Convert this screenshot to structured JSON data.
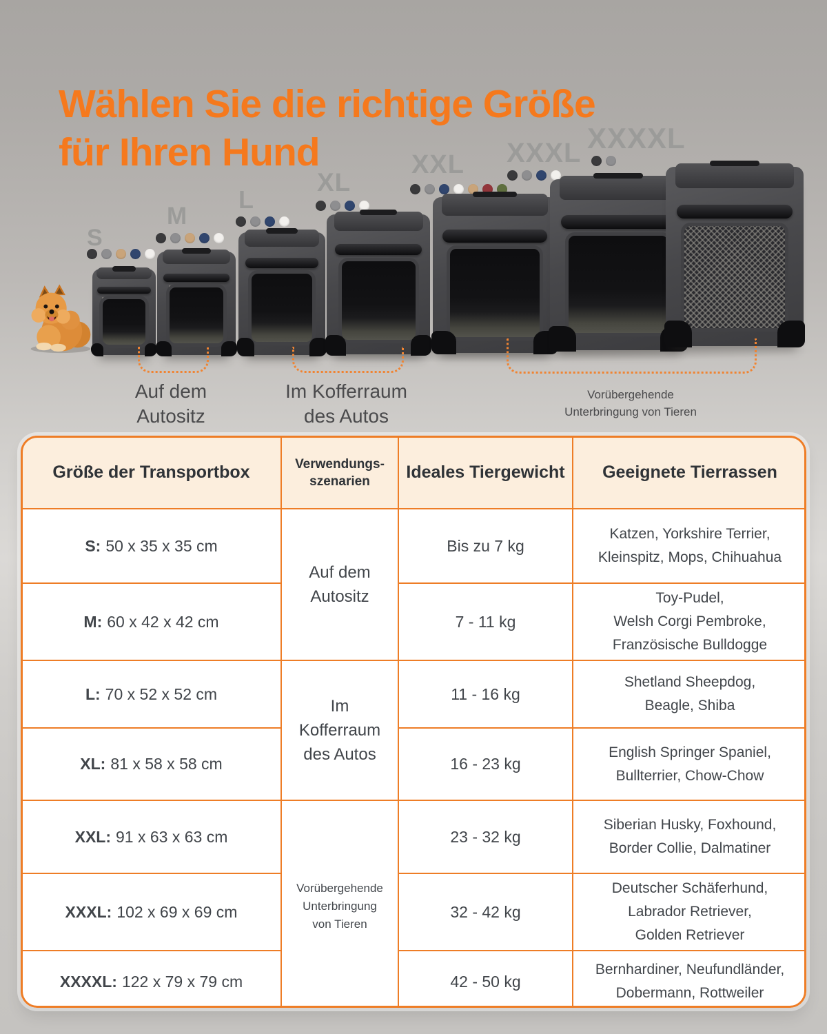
{
  "title": {
    "line1": "Wählen Sie die richtige Größe",
    "line2": "für Ihren Hund",
    "color": "#f5791d"
  },
  "accent_orange": "#ee7d26",
  "header_bg": "#fceedd",
  "hero": {
    "sizes": [
      {
        "label": "S",
        "dots": [
          "#3a3a3c",
          "#8e8e90",
          "#c9a47a",
          "#31466e",
          "#f2f0ed"
        ]
      },
      {
        "label": "M",
        "dots": [
          "#3a3a3c",
          "#8e8e90",
          "#c9a47a",
          "#31466e",
          "#f2f0ed"
        ]
      },
      {
        "label": "L",
        "dots": [
          "#3a3a3c",
          "#8e8e90",
          "#31466e",
          "#f2f0ed"
        ]
      },
      {
        "label": "XL",
        "dots": [
          "#3a3a3c",
          "#8e8e90",
          "#31466e",
          "#f2f0ed"
        ]
      },
      {
        "label": "XXL",
        "dots": [
          "#3a3a3c",
          "#8e8e90",
          "#31466e",
          "#f2f0ed",
          "#c9a47a",
          "#93353a",
          "#5f6f3e"
        ]
      },
      {
        "label": "XXXL",
        "dots": [
          "#3a3a3c",
          "#8e8e90",
          "#31466e",
          "#f2f0ed"
        ]
      },
      {
        "label": "XXXXL",
        "dots": [
          "#3a3a3c",
          "#8e8e90"
        ]
      }
    ],
    "annotations": [
      {
        "line1": "Auf dem",
        "line2": "Autositz"
      },
      {
        "line1": "Im Kofferraum",
        "line2": "des Autos"
      },
      {
        "line1": "Vorübergehende",
        "line2": "Unterbringung von Tieren"
      }
    ]
  },
  "table": {
    "headers": {
      "col1": "Größe der Transportbox",
      "col2a": "Verwendungs-",
      "col2b": "szenarien",
      "col3": "Ideales Tiergewicht",
      "col4": "Geeignete Tierrassen"
    },
    "scenarios": [
      {
        "line1": "Auf dem",
        "line2": "Autositz"
      },
      {
        "line1": "Im Kofferraum",
        "line2": "des Autos"
      },
      {
        "line1": "Vorübergehende",
        "line2": "Unterbringung",
        "line3": "von Tieren"
      }
    ],
    "rows": [
      {
        "size": "S:",
        "dims": "50 x 35 x 35 cm",
        "weight": "Bis zu 7 kg",
        "breeds1": "Katzen, Yorkshire Terrier,",
        "breeds2": "Kleinspitz, Mops, Chihuahua"
      },
      {
        "size": "M:",
        "dims": "60 x 42 x 42 cm",
        "weight": "7 - 11 kg",
        "breeds1": "Toy-Pudel,",
        "breeds2": "Welsh Corgi Pembroke,",
        "breeds3": "Französische Bulldogge"
      },
      {
        "size": "L:",
        "dims": "70 x 52 x 52 cm",
        "weight": "11 - 16 kg",
        "breeds1": "Shetland Sheepdog,",
        "breeds2": "Beagle, Shiba"
      },
      {
        "size": "XL:",
        "dims": "81 x 58 x 58 cm",
        "weight": "16 - 23 kg",
        "breeds1": "English Springer Spaniel,",
        "breeds2": "Bullterrier, Chow-Chow"
      },
      {
        "size": "XXL:",
        "dims": "91 x 63 x 63 cm",
        "weight": "23 - 32 kg",
        "breeds1": "Siberian Husky, Foxhound,",
        "breeds2": "Border Collie, Dalmatiner"
      },
      {
        "size": "XXXL:",
        "dims": "102 x 69 x 69 cm",
        "weight": "32 - 42 kg",
        "breeds1": "Deutscher Schäferhund,",
        "breeds2": "Labrador Retriever,",
        "breeds3": "Golden Retriever"
      },
      {
        "size": "XXXXL:",
        "dims": "122 x 79 x 79 cm",
        "weight": "42 - 50 kg",
        "breeds1": "Bernhardiner, Neufundländer,",
        "breeds2": "Dobermann, Rottweiler"
      }
    ]
  }
}
